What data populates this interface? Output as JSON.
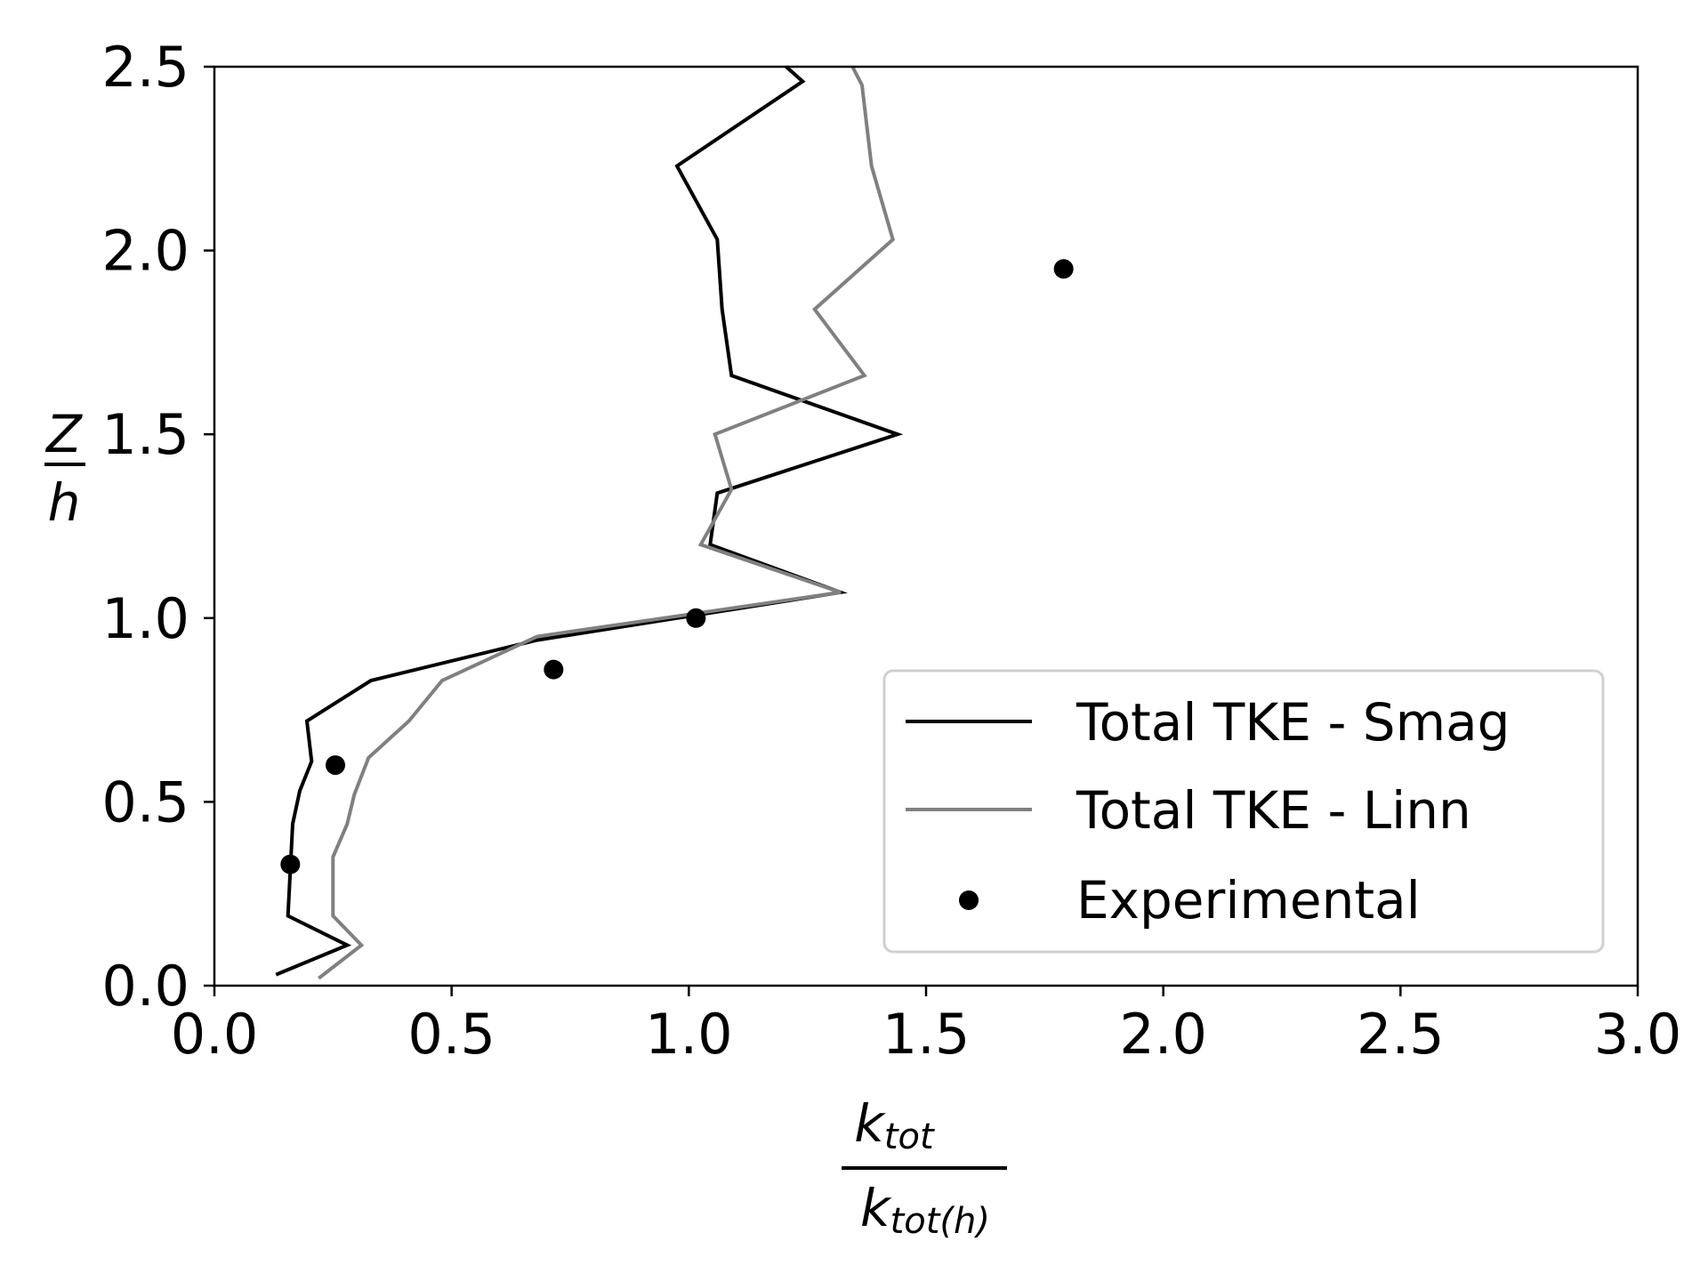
{
  "chart_data": {
    "type": "line",
    "xlabel": {
      "numerator": "k",
      "numerator_sub": "tot",
      "denominator": "k",
      "denominator_sub": "tot(h)"
    },
    "ylabel": {
      "numerator": "Z",
      "denominator": "h"
    },
    "xlim": [
      0.0,
      3.0
    ],
    "ylim": [
      0.0,
      2.5
    ],
    "xticks": [
      "0.0",
      "0.5",
      "1.0",
      "1.5",
      "2.0",
      "2.5",
      "3.0"
    ],
    "yticks": [
      "0.0",
      "0.5",
      "1.0",
      "1.5",
      "2.0",
      "2.5"
    ],
    "grid": false,
    "legend_position": "lower-right",
    "series": [
      {
        "name": "Total TKE - Smag",
        "kind": "line",
        "color": "#000000",
        "points": [
          [
            0.13,
            0.03
          ],
          [
            0.28,
            0.11
          ],
          [
            0.155,
            0.19
          ],
          [
            0.165,
            0.44
          ],
          [
            0.18,
            0.53
          ],
          [
            0.205,
            0.61
          ],
          [
            0.195,
            0.72
          ],
          [
            0.33,
            0.83
          ],
          [
            0.68,
            0.94
          ],
          [
            1.32,
            1.07
          ],
          [
            1.045,
            1.2
          ],
          [
            1.06,
            1.34
          ],
          [
            1.44,
            1.5
          ],
          [
            1.09,
            1.66
          ],
          [
            1.07,
            1.84
          ],
          [
            1.06,
            2.03
          ],
          [
            0.975,
            2.23
          ],
          [
            1.24,
            2.46
          ],
          [
            1.205,
            2.5
          ]
        ]
      },
      {
        "name": "Total TKE - Linn",
        "kind": "line",
        "color": "#808080",
        "points": [
          [
            0.22,
            0.02
          ],
          [
            0.31,
            0.11
          ],
          [
            0.25,
            0.19
          ],
          [
            0.25,
            0.35
          ],
          [
            0.28,
            0.44
          ],
          [
            0.295,
            0.52
          ],
          [
            0.325,
            0.62
          ],
          [
            0.41,
            0.72
          ],
          [
            0.48,
            0.83
          ],
          [
            0.68,
            0.95
          ],
          [
            1.32,
            1.07
          ],
          [
            1.025,
            1.2
          ],
          [
            1.09,
            1.35
          ],
          [
            1.055,
            1.5
          ],
          [
            1.37,
            1.66
          ],
          [
            1.265,
            1.84
          ],
          [
            1.43,
            2.03
          ],
          [
            1.385,
            2.23
          ],
          [
            1.365,
            2.45
          ],
          [
            1.345,
            2.5
          ]
        ]
      },
      {
        "name": "Experimental",
        "kind": "scatter",
        "color": "#000000",
        "points": [
          [
            0.16,
            0.33
          ],
          [
            0.255,
            0.6
          ],
          [
            0.715,
            0.86
          ],
          [
            1.015,
            1.0
          ],
          [
            1.79,
            1.95
          ]
        ]
      }
    ]
  }
}
